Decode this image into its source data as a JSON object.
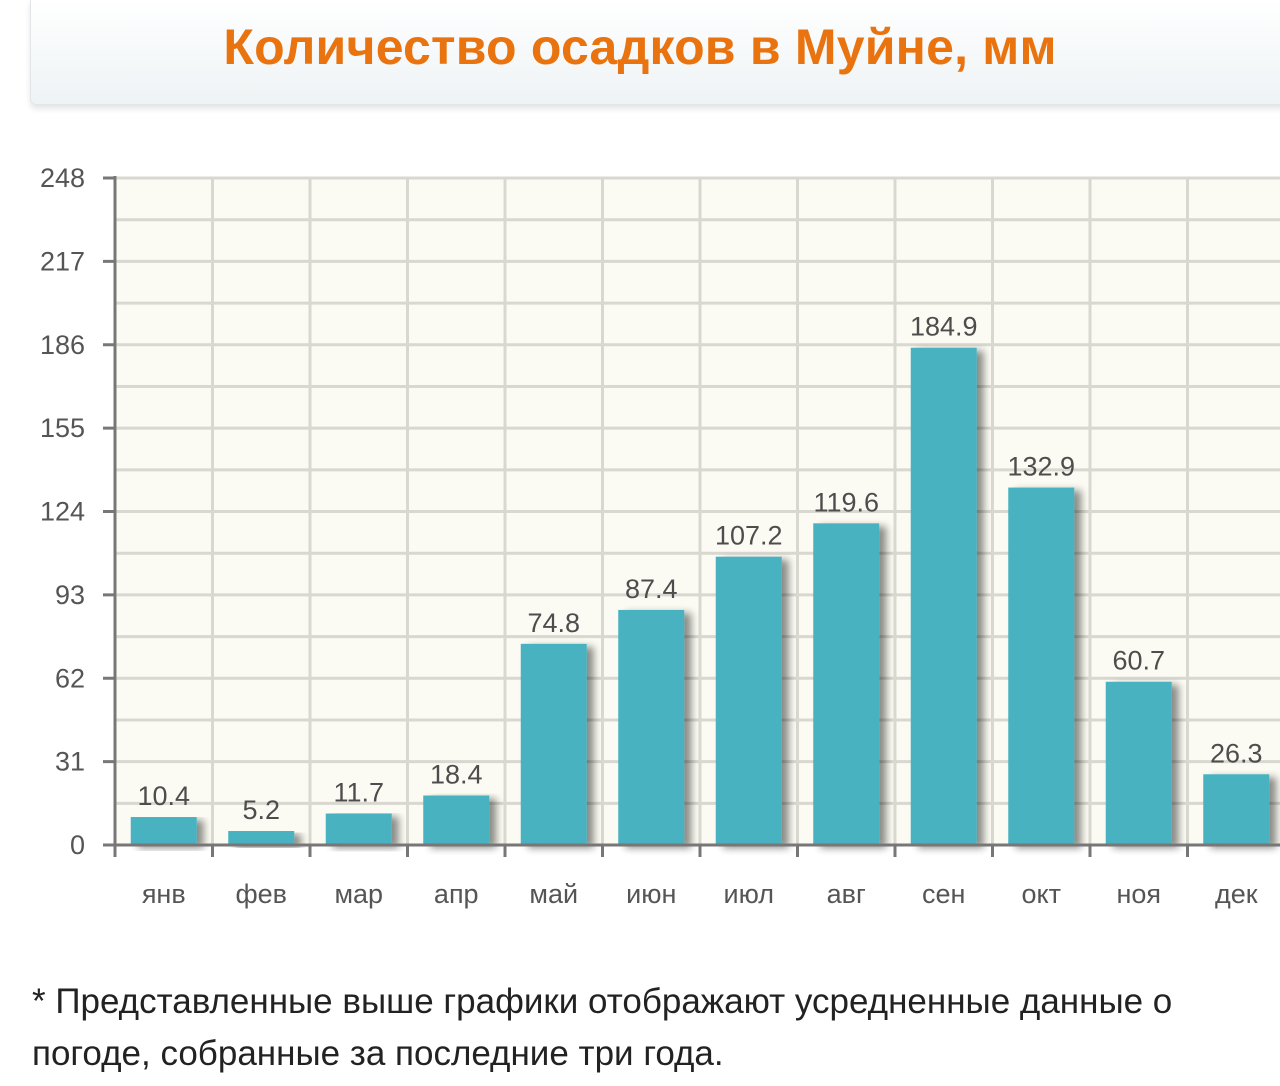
{
  "header": {
    "title": "Количество осадков в Муйне, мм"
  },
  "chart_data": {
    "type": "bar",
    "title": "Количество осадков в Муйне, мм",
    "xlabel": "",
    "ylabel": "",
    "categories": [
      "янв",
      "фев",
      "мар",
      "апр",
      "май",
      "июн",
      "июл",
      "авг",
      "сен",
      "окт",
      "ноя",
      "дек"
    ],
    "values": [
      10.4,
      5.2,
      11.7,
      18.4,
      74.8,
      87.4,
      107.2,
      119.6,
      184.9,
      132.9,
      60.7,
      26.3
    ],
    "value_labels": [
      "10.4",
      "5.2",
      "11.7",
      "18.4",
      "74.8",
      "87.4",
      "107.2",
      "119.6",
      "184.9",
      "132.9",
      "60.7",
      "26.3"
    ],
    "y_ticks": [
      0,
      31,
      62,
      93,
      124,
      155,
      186,
      217,
      248
    ],
    "ylim": [
      0,
      248
    ],
    "grid": true,
    "legend": "none",
    "colors": {
      "bar": "#48b2c1",
      "grid": "#d8d8d0",
      "plot_bg": "#fbfbf3",
      "axis": "#777777"
    }
  },
  "footnote": {
    "text": "* Представленные выше графики отображают усредненные данные о погоде, собранные за последние три года."
  }
}
